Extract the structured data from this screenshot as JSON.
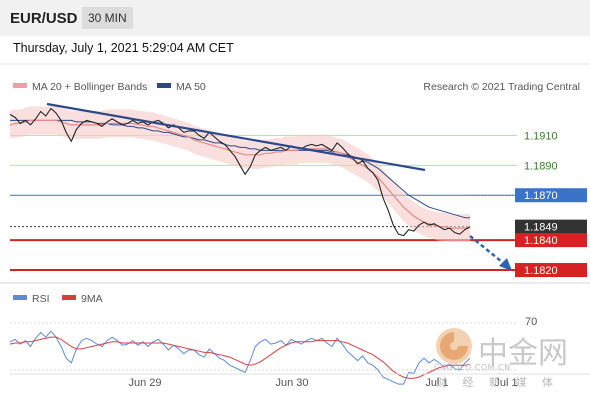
{
  "header": {
    "symbol": "EUR/USD",
    "timeframe": "30 MIN",
    "timestamp": "Thursday, July 1, 2021 5:29:04 AM CET"
  },
  "legend": {
    "ma20_label": "MA 20 + Bollinger Bands",
    "ma50_label": "MA 50",
    "credit": "Research © 2021 Trading Central"
  },
  "indicator_legend": {
    "rsi_label": "RSI",
    "ma_label": "9MA"
  },
  "watermark": {
    "brand_cn": "中金网",
    "url": "CNGOLD.COM.CN",
    "tagline": "财 经 新 媒 体"
  },
  "colors": {
    "resistance": "#3a8a2a",
    "pivot": "#3a73c7",
    "support": "#d62222",
    "current": "#333333",
    "trend": "#2c4a8a",
    "bollinger": "#f6c9c9",
    "ma20": "#e58a8a",
    "ma50": "#2c4a8a",
    "rsi": "#5b8ad6",
    "rsi_ma": "#d64040"
  },
  "chart_data": {
    "type": "line",
    "x_labels": [
      "Jun 29",
      "Jun 30",
      "Jul 1",
      "Jul 1"
    ],
    "y_range": [
      1.1812,
      1.1935
    ],
    "levels": [
      {
        "label": "1.1910",
        "value": 1.191,
        "kind": "resistance"
      },
      {
        "label": "1.1890",
        "value": 1.189,
        "kind": "resistance"
      },
      {
        "label": "1.1870",
        "value": 1.187,
        "kind": "pivot"
      },
      {
        "label": "1.1849",
        "value": 1.1849,
        "kind": "current"
      },
      {
        "label": "1.1840",
        "value": 1.184,
        "kind": "support"
      },
      {
        "label": "1.1820",
        "value": 1.182,
        "kind": "support"
      }
    ],
    "price": [
      1.1924,
      1.1922,
      1.1918,
      1.192,
      1.1917,
      1.1921,
      1.1926,
      1.1923,
      1.1928,
      1.1925,
      1.192,
      1.1912,
      1.1906,
      1.1914,
      1.1918,
      1.192,
      1.1919,
      1.1918,
      1.1916,
      1.1919,
      1.1921,
      1.1919,
      1.1917,
      1.1918,
      1.192,
      1.1918,
      1.1919,
      1.1917,
      1.1919,
      1.192,
      1.1918,
      1.1915,
      1.1917,
      1.1915,
      1.1912,
      1.1913,
      1.1913,
      1.191,
      1.1908,
      1.1912,
      1.1909,
      1.1906,
      1.1904,
      1.19,
      1.1896,
      1.189,
      1.1884,
      1.1889,
      1.1897,
      1.19,
      1.1902,
      1.19,
      1.1901,
      1.1902,
      1.19,
      1.1903,
      1.1902,
      1.1901,
      1.1903,
      1.1904,
      1.1903,
      1.1904,
      1.1902,
      1.19,
      1.1905,
      1.1902,
      1.1898,
      1.1895,
      1.1891,
      1.1893,
      1.1888,
      1.1885,
      1.188,
      1.1868,
      1.186,
      1.185,
      1.1844,
      1.1843,
      1.1847,
      1.1846,
      1.185,
      1.1852,
      1.185,
      1.1851,
      1.1849,
      1.1847,
      1.1848,
      1.1845,
      1.1844,
      1.1847,
      1.1849
    ],
    "ma20": [
      1.1917,
      1.1918,
      1.1918,
      1.1919,
      1.192,
      1.192,
      1.192,
      1.192,
      1.192,
      1.192,
      1.1919,
      1.1918,
      1.1917,
      1.1917,
      1.1917,
      1.1917,
      1.1917,
      1.1917,
      1.1917,
      1.1918,
      1.1918,
      1.1918,
      1.1918,
      1.1918,
      1.1918,
      1.1917,
      1.1917,
      1.1916,
      1.1916,
      1.1915,
      1.1914,
      1.1913,
      1.1912,
      1.1911,
      1.191,
      1.1909,
      1.1907,
      1.1906,
      1.1905,
      1.1904,
      1.1903,
      1.1902,
      1.1901,
      1.19,
      1.1899,
      1.1898,
      1.1897,
      1.1897,
      1.1897,
      1.1897,
      1.1898,
      1.1898,
      1.1899,
      1.1899,
      1.19,
      1.19,
      1.19,
      1.1901,
      1.1901,
      1.1901,
      1.1901,
      1.1901,
      1.1901,
      1.19,
      1.1899,
      1.1898,
      1.1896,
      1.1894,
      1.1892,
      1.189,
      1.1888,
      1.1885,
      1.1882,
      1.1878,
      1.1874,
      1.187,
      1.1866,
      1.1862,
      1.1859,
      1.1856,
      1.1854,
      1.1852,
      1.1851,
      1.185,
      1.1849,
      1.1849,
      1.1848,
      1.1848,
      1.1848,
      1.1848,
      1.1848
    ],
    "ma50": [
      1.192,
      1.192,
      1.192,
      1.192,
      1.192,
      1.192,
      1.192,
      1.192,
      1.192,
      1.192,
      1.192,
      1.192,
      1.192,
      1.1919,
      1.1919,
      1.1919,
      1.1919,
      1.1918,
      1.1918,
      1.1918,
      1.1917,
      1.1917,
      1.1917,
      1.1916,
      1.1916,
      1.1915,
      1.1915,
      1.1914,
      1.1913,
      1.1913,
      1.1912,
      1.1912,
      1.1911,
      1.191,
      1.1909,
      1.1909,
      1.1908,
      1.1907,
      1.1907,
      1.1906,
      1.1905,
      1.1905,
      1.1904,
      1.1903,
      1.1903,
      1.1902,
      1.1902,
      1.1901,
      1.1901,
      1.19,
      1.19,
      1.19,
      1.19,
      1.19,
      1.19,
      1.19,
      1.19,
      1.19,
      1.19,
      1.19,
      1.19,
      1.19,
      1.19,
      1.1899,
      1.1899,
      1.1898,
      1.1897,
      1.1896,
      1.1895,
      1.1893,
      1.1892,
      1.189,
      1.1888,
      1.1885,
      1.1882,
      1.1879,
      1.1876,
      1.1873,
      1.187,
      1.1868,
      1.1866,
      1.1864,
      1.1862,
      1.1861,
      1.186,
      1.1859,
      1.1858,
      1.1857,
      1.1856,
      1.1855,
      1.1855
    ],
    "rsi_axis": [
      "70"
    ],
    "rsi": [
      54,
      56,
      52,
      55,
      50,
      57,
      62,
      58,
      63,
      58,
      50,
      40,
      36,
      48,
      55,
      57,
      55,
      52,
      50,
      55,
      58,
      55,
      51,
      52,
      55,
      51,
      54,
      50,
      54,
      56,
      52,
      47,
      51,
      48,
      44,
      47,
      47,
      43,
      41,
      48,
      44,
      40,
      38,
      34,
      32,
      30,
      28,
      38,
      50,
      54,
      56,
      52,
      53,
      55,
      51,
      56,
      54,
      52,
      55,
      57,
      55,
      57,
      53,
      50,
      57,
      52,
      46,
      42,
      38,
      42,
      36,
      34,
      30,
      24,
      22,
      20,
      18,
      18,
      28,
      27,
      36,
      40,
      36,
      39,
      36,
      33,
      35,
      31,
      30,
      36,
      40
    ],
    "rsi_ma": [
      52,
      53,
      53,
      54,
      54,
      55,
      56,
      57,
      58,
      58,
      56,
      53,
      50,
      48,
      48,
      49,
      50,
      51,
      52,
      53,
      54,
      54,
      53,
      53,
      53,
      53,
      53,
      53,
      53,
      53,
      53,
      52,
      51,
      50,
      49,
      48,
      47,
      46,
      45,
      45,
      44,
      43,
      42,
      41,
      39,
      37,
      35,
      34,
      35,
      37,
      40,
      43,
      46,
      49,
      51,
      53,
      54,
      54,
      54,
      54,
      55,
      55,
      55,
      55,
      55,
      54,
      53,
      51,
      49,
      47,
      45,
      43,
      40,
      37,
      33,
      29,
      26,
      24,
      23,
      23,
      24,
      26,
      28,
      30,
      32,
      33,
      34,
      34,
      34,
      34,
      35
    ]
  }
}
